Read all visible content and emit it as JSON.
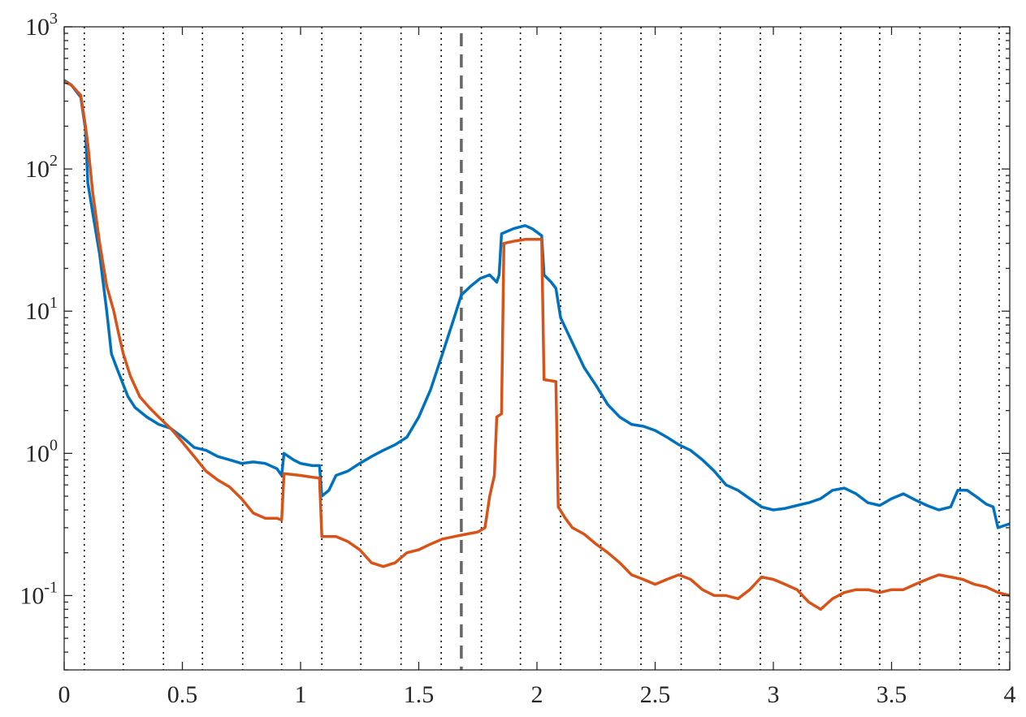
{
  "chart_data": {
    "type": "line",
    "title": "",
    "xlabel": "",
    "ylabel": "",
    "xlim": [
      0,
      4
    ],
    "ylim": [
      0.03,
      1000
    ],
    "yscale": "log",
    "grid": "off",
    "legend": "none",
    "x_ticks": [
      {
        "value": 0,
        "label": "0"
      },
      {
        "value": 0.5,
        "label": "0.5"
      },
      {
        "value": 1,
        "label": "1"
      },
      {
        "value": 1.5,
        "label": "1.5"
      },
      {
        "value": 2,
        "label": "2"
      },
      {
        "value": 2.5,
        "label": "2.5"
      },
      {
        "value": 3,
        "label": "3"
      },
      {
        "value": 3.5,
        "label": "3.5"
      },
      {
        "value": 4,
        "label": "4"
      }
    ],
    "y_ticks": [
      {
        "value": 0.1,
        "base": "10",
        "exp": "-1"
      },
      {
        "value": 1,
        "base": "10",
        "exp": "0"
      },
      {
        "value": 10,
        "base": "10",
        "exp": "1"
      },
      {
        "value": 100,
        "base": "10",
        "exp": "2"
      },
      {
        "value": 1000,
        "base": "10",
        "exp": "3"
      }
    ],
    "dotted_vlines": [
      0.085,
      0.25,
      0.42,
      0.585,
      0.755,
      0.92,
      1.09,
      1.255,
      1.425,
      1.595,
      1.765,
      1.93,
      2.1,
      2.27,
      2.44,
      2.61,
      2.775,
      2.945,
      3.115,
      3.285,
      3.45,
      3.62,
      3.79,
      3.955
    ],
    "dashed_vline": {
      "x": 1.68,
      "color": "#666666"
    },
    "series": [
      {
        "color": "#0072BD",
        "points": [
          [
            0,
            420
          ],
          [
            0.03,
            390
          ],
          [
            0.07,
            320
          ],
          [
            0.09,
            190
          ],
          [
            0.1,
            80
          ],
          [
            0.12,
            50
          ],
          [
            0.15,
            25
          ],
          [
            0.18,
            10
          ],
          [
            0.2,
            5
          ],
          [
            0.23,
            3.7
          ],
          [
            0.27,
            2.5
          ],
          [
            0.3,
            2.1
          ],
          [
            0.35,
            1.8
          ],
          [
            0.4,
            1.6
          ],
          [
            0.45,
            1.5
          ],
          [
            0.5,
            1.3
          ],
          [
            0.55,
            1.1
          ],
          [
            0.6,
            1.05
          ],
          [
            0.65,
            0.95
          ],
          [
            0.7,
            0.9
          ],
          [
            0.75,
            0.85
          ],
          [
            0.8,
            0.87
          ],
          [
            0.85,
            0.85
          ],
          [
            0.9,
            0.78
          ],
          [
            0.92,
            0.7
          ],
          [
            0.93,
            1.0
          ],
          [
            0.97,
            0.9
          ],
          [
            1.0,
            0.85
          ],
          [
            1.05,
            0.82
          ],
          [
            1.08,
            0.82
          ],
          [
            1.09,
            0.5
          ],
          [
            1.12,
            0.55
          ],
          [
            1.15,
            0.7
          ],
          [
            1.2,
            0.75
          ],
          [
            1.25,
            0.85
          ],
          [
            1.3,
            0.95
          ],
          [
            1.35,
            1.05
          ],
          [
            1.4,
            1.15
          ],
          [
            1.45,
            1.3
          ],
          [
            1.5,
            1.8
          ],
          [
            1.55,
            2.8
          ],
          [
            1.6,
            5
          ],
          [
            1.65,
            9
          ],
          [
            1.68,
            13
          ],
          [
            1.72,
            15
          ],
          [
            1.76,
            17
          ],
          [
            1.8,
            18
          ],
          [
            1.83,
            16
          ],
          [
            1.84,
            18
          ],
          [
            1.85,
            35
          ],
          [
            1.9,
            38
          ],
          [
            1.95,
            40
          ],
          [
            1.98,
            38
          ],
          [
            2.02,
            34
          ],
          [
            2.03,
            18
          ],
          [
            2.06,
            16
          ],
          [
            2.08,
            14.5
          ],
          [
            2.1,
            9
          ],
          [
            2.15,
            6
          ],
          [
            2.2,
            4
          ],
          [
            2.25,
            3
          ],
          [
            2.3,
            2.2
          ],
          [
            2.35,
            1.8
          ],
          [
            2.4,
            1.6
          ],
          [
            2.45,
            1.55
          ],
          [
            2.5,
            1.45
          ],
          [
            2.55,
            1.3
          ],
          [
            2.6,
            1.15
          ],
          [
            2.65,
            1.05
          ],
          [
            2.7,
            0.9
          ],
          [
            2.75,
            0.75
          ],
          [
            2.8,
            0.6
          ],
          [
            2.85,
            0.55
          ],
          [
            2.9,
            0.48
          ],
          [
            2.95,
            0.42
          ],
          [
            3.0,
            0.4
          ],
          [
            3.05,
            0.41
          ],
          [
            3.1,
            0.43
          ],
          [
            3.15,
            0.45
          ],
          [
            3.2,
            0.48
          ],
          [
            3.25,
            0.55
          ],
          [
            3.3,
            0.57
          ],
          [
            3.35,
            0.52
          ],
          [
            3.4,
            0.45
          ],
          [
            3.45,
            0.43
          ],
          [
            3.5,
            0.48
          ],
          [
            3.55,
            0.52
          ],
          [
            3.6,
            0.47
          ],
          [
            3.65,
            0.43
          ],
          [
            3.7,
            0.4
          ],
          [
            3.75,
            0.42
          ],
          [
            3.78,
            0.55
          ],
          [
            3.82,
            0.55
          ],
          [
            3.87,
            0.48
          ],
          [
            3.9,
            0.44
          ],
          [
            3.93,
            0.42
          ],
          [
            3.95,
            0.3
          ],
          [
            4.0,
            0.32
          ]
        ]
      },
      {
        "color": "#D95319",
        "points": [
          [
            0,
            410
          ],
          [
            0.03,
            390
          ],
          [
            0.07,
            330
          ],
          [
            0.09,
            200
          ],
          [
            0.1,
            150
          ],
          [
            0.12,
            70
          ],
          [
            0.15,
            30
          ],
          [
            0.18,
            15
          ],
          [
            0.21,
            10
          ],
          [
            0.23,
            7
          ],
          [
            0.25,
            5
          ],
          [
            0.28,
            3.5
          ],
          [
            0.32,
            2.5
          ],
          [
            0.36,
            2.1
          ],
          [
            0.4,
            1.8
          ],
          [
            0.45,
            1.5
          ],
          [
            0.5,
            1.2
          ],
          [
            0.55,
            0.95
          ],
          [
            0.6,
            0.75
          ],
          [
            0.65,
            0.65
          ],
          [
            0.7,
            0.58
          ],
          [
            0.75,
            0.48
          ],
          [
            0.8,
            0.38
          ],
          [
            0.85,
            0.35
          ],
          [
            0.9,
            0.35
          ],
          [
            0.92,
            0.34
          ],
          [
            0.93,
            0.72
          ],
          [
            1.0,
            0.7
          ],
          [
            1.05,
            0.68
          ],
          [
            1.08,
            0.67
          ],
          [
            1.09,
            0.26
          ],
          [
            1.15,
            0.26
          ],
          [
            1.2,
            0.24
          ],
          [
            1.25,
            0.21
          ],
          [
            1.3,
            0.17
          ],
          [
            1.35,
            0.16
          ],
          [
            1.4,
            0.17
          ],
          [
            1.45,
            0.2
          ],
          [
            1.5,
            0.21
          ],
          [
            1.55,
            0.23
          ],
          [
            1.6,
            0.25
          ],
          [
            1.65,
            0.26
          ],
          [
            1.7,
            0.27
          ],
          [
            1.75,
            0.28
          ],
          [
            1.78,
            0.3
          ],
          [
            1.8,
            0.5
          ],
          [
            1.82,
            0.7
          ],
          [
            1.83,
            1.8
          ],
          [
            1.85,
            1.9
          ],
          [
            1.86,
            30
          ],
          [
            1.9,
            31
          ],
          [
            1.95,
            32
          ],
          [
            2.0,
            32
          ],
          [
            2.02,
            32
          ],
          [
            2.03,
            3.3
          ],
          [
            2.08,
            3.2
          ],
          [
            2.09,
            0.42
          ],
          [
            2.12,
            0.35
          ],
          [
            2.15,
            0.3
          ],
          [
            2.2,
            0.27
          ],
          [
            2.25,
            0.23
          ],
          [
            2.3,
            0.2
          ],
          [
            2.35,
            0.17
          ],
          [
            2.4,
            0.14
          ],
          [
            2.45,
            0.13
          ],
          [
            2.5,
            0.12
          ],
          [
            2.55,
            0.13
          ],
          [
            2.6,
            0.14
          ],
          [
            2.65,
            0.13
          ],
          [
            2.7,
            0.11
          ],
          [
            2.75,
            0.1
          ],
          [
            2.8,
            0.1
          ],
          [
            2.85,
            0.095
          ],
          [
            2.9,
            0.11
          ],
          [
            2.95,
            0.135
          ],
          [
            3.0,
            0.13
          ],
          [
            3.05,
            0.12
          ],
          [
            3.1,
            0.11
          ],
          [
            3.15,
            0.09
          ],
          [
            3.2,
            0.08
          ],
          [
            3.25,
            0.095
          ],
          [
            3.3,
            0.105
          ],
          [
            3.35,
            0.11
          ],
          [
            3.4,
            0.11
          ],
          [
            3.45,
            0.105
          ],
          [
            3.5,
            0.11
          ],
          [
            3.55,
            0.11
          ],
          [
            3.6,
            0.12
          ],
          [
            3.65,
            0.13
          ],
          [
            3.7,
            0.14
          ],
          [
            3.75,
            0.135
          ],
          [
            3.8,
            0.13
          ],
          [
            3.85,
            0.12
          ],
          [
            3.9,
            0.115
          ],
          [
            3.95,
            0.105
          ],
          [
            4.0,
            0.1
          ]
        ]
      }
    ]
  }
}
